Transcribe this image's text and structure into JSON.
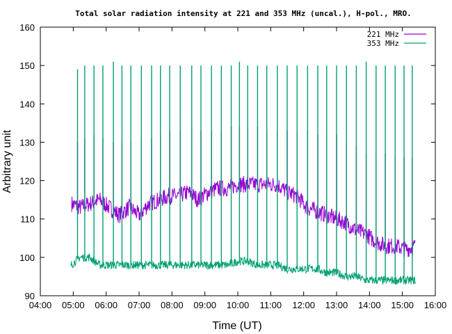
{
  "chart_data": {
    "type": "line",
    "title": "Total solar radiation intensity at 221 and 353 MHz (uncal.), H-pol., MRO.",
    "xlabel": "Time (UT)",
    "ylabel": "Arbitrary unit",
    "xlim": [
      4,
      16
    ],
    "ylim": [
      90,
      160
    ],
    "x_ticks": [
      4,
      5,
      6,
      7,
      8,
      9,
      10,
      11,
      12,
      13,
      14,
      15,
      16
    ],
    "x_tick_labels": [
      "04:00",
      "05:00",
      "06:00",
      "07:00",
      "08:00",
      "09:00",
      "10:00",
      "11:00",
      "12:00",
      "13:00",
      "14:00",
      "15:00",
      "16:00"
    ],
    "y_ticks": [
      90,
      100,
      110,
      120,
      130,
      140,
      150,
      160
    ],
    "y_tick_labels": [
      "90",
      "100",
      "110",
      "120",
      "130",
      "140",
      "150",
      "160"
    ],
    "legend_position": "top-right",
    "grid": false,
    "series": [
      {
        "name": "221 MHz",
        "color": "#9400d3",
        "x": [
          4.95,
          5.2,
          5.5,
          5.8,
          6.1,
          6.4,
          6.7,
          7.0,
          7.3,
          7.6,
          7.9,
          8.2,
          8.5,
          8.8,
          9.1,
          9.4,
          9.7,
          10.0,
          10.3,
          10.6,
          10.9,
          11.2,
          11.5,
          11.8,
          12.1,
          12.4,
          12.7,
          13.0,
          13.3,
          13.6,
          13.9,
          14.2,
          14.5,
          14.8,
          15.1,
          15.4
        ],
        "values": [
          114,
          113,
          114,
          115,
          113,
          111,
          113,
          111,
          114,
          115,
          116,
          116,
          117,
          115,
          117,
          118,
          118,
          119,
          119,
          119,
          119,
          119,
          117,
          116,
          113,
          112,
          111,
          110,
          109,
          107,
          106,
          104,
          103,
          103,
          102,
          103
        ],
        "spikes_x": [
          5.13,
          5.35,
          5.63,
          5.9,
          6.22,
          6.48,
          6.75,
          7.07,
          7.38,
          7.65,
          7.93,
          8.25,
          8.6,
          8.88,
          9.2,
          9.5,
          9.8,
          10.05,
          10.3,
          10.6,
          10.88,
          11.2,
          11.5,
          11.8,
          12.12,
          12.43,
          12.7,
          13.0,
          13.3,
          13.6,
          13.9,
          14.2,
          14.48,
          14.78,
          15.05,
          15.3
        ],
        "spikes_y": [
          130,
          131,
          132,
          131,
          130,
          130,
          130,
          131,
          131,
          132,
          133,
          133,
          134,
          133,
          133,
          133,
          134,
          134,
          134,
          134,
          133,
          133,
          133,
          133,
          133,
          132,
          132,
          132,
          130,
          129,
          127,
          127,
          127,
          126,
          126,
          126
        ]
      },
      {
        "name": "353 MHz",
        "color": "#009e73",
        "x": [
          4.93,
          5.2,
          5.5,
          5.8,
          6.1,
          6.4,
          6.7,
          7.0,
          7.3,
          7.6,
          7.9,
          8.2,
          8.5,
          8.8,
          9.1,
          9.4,
          9.7,
          10.0,
          10.3,
          10.6,
          10.9,
          11.2,
          11.5,
          11.8,
          12.1,
          12.4,
          12.7,
          13.0,
          13.3,
          13.6,
          13.9,
          14.2,
          14.5,
          14.8,
          15.1,
          15.4
        ],
        "values": [
          98,
          100,
          100,
          98,
          98,
          98,
          98,
          98,
          98,
          98,
          98,
          98,
          98,
          98,
          98,
          98,
          98,
          99,
          99,
          98,
          98,
          98,
          97,
          97,
          97,
          97,
          96,
          96,
          95,
          95,
          94,
          94,
          94,
          94,
          94,
          94
        ],
        "spikes_x": [
          5.13,
          5.35,
          5.63,
          5.9,
          6.22,
          6.48,
          6.75,
          7.07,
          7.38,
          7.65,
          7.93,
          8.25,
          8.6,
          8.88,
          9.2,
          9.5,
          9.8,
          10.05,
          10.3,
          10.6,
          10.88,
          11.2,
          11.5,
          11.8,
          12.12,
          12.43,
          12.7,
          13.0,
          13.3,
          13.6,
          13.9,
          14.2,
          14.48,
          14.78,
          15.05,
          15.3
        ],
        "spikes_y": [
          149,
          150,
          150,
          150,
          151,
          150,
          150,
          150,
          150,
          150,
          150,
          150,
          150,
          150,
          150,
          150,
          150,
          151,
          150,
          150,
          150,
          150,
          150,
          150,
          150,
          150,
          150,
          150,
          150,
          150,
          151,
          150,
          150,
          150,
          150,
          150
        ]
      }
    ]
  }
}
